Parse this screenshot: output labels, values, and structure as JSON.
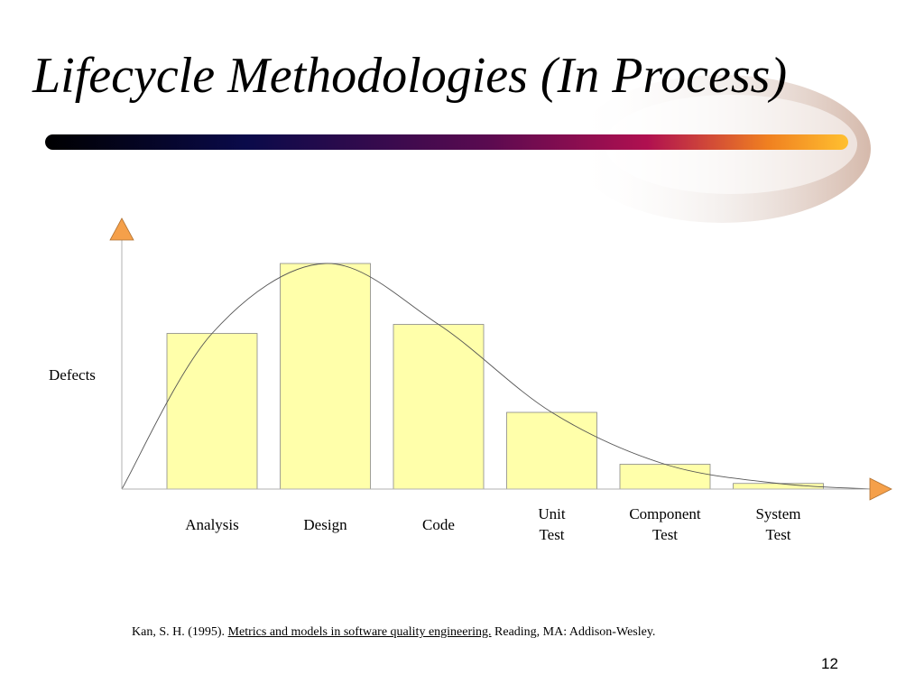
{
  "slide": {
    "title": "Lifecycle Methodologies (In Process)",
    "citation": {
      "prefix": "Kan, S. H. (1995). ",
      "book": "Metrics and models in software quality engineering.",
      "suffix": " Reading, MA: Addison-Wesley."
    },
    "page_number": "12"
  },
  "colors": {
    "bar_fill": "#FFFFAA",
    "bar_stroke": "#888888",
    "arrow": "#F5A04A",
    "curve": "#555555"
  },
  "chart_data": {
    "type": "bar",
    "ylabel": "Defects",
    "xlabel": "",
    "categories": [
      [
        "Analysis"
      ],
      [
        "Design"
      ],
      [
        "Code"
      ],
      [
        "Unit",
        "Test"
      ],
      [
        "Component",
        "Test"
      ],
      [
        "System",
        "Test"
      ]
    ],
    "values": [
      69,
      100,
      73,
      34,
      11,
      2.5
    ],
    "ylim": [
      0,
      100
    ],
    "axis_ticks": false,
    "grid": false,
    "trend_curve": true
  }
}
